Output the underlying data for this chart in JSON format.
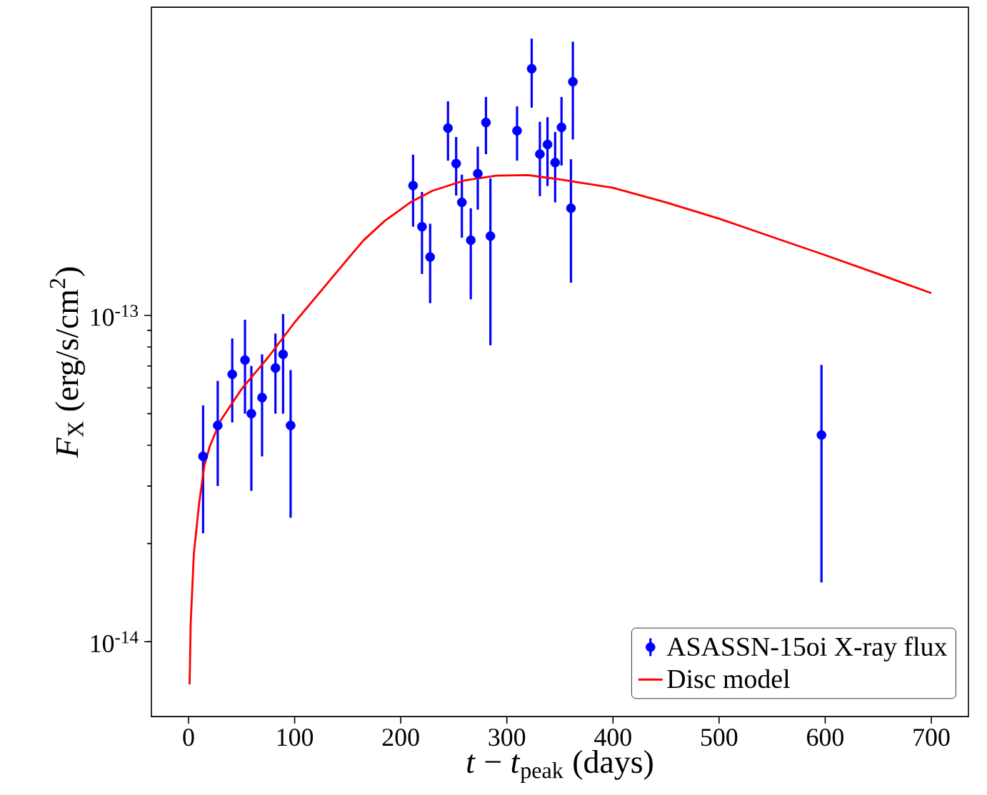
{
  "chart_data": {
    "type": "scatter",
    "xlabel": "*t* − *t*$_{peak}$ (days)",
    "ylabel": "*F*$_{X}$ (erg/s/cm$^{2}$)",
    "xlim": [
      -35,
      735
    ],
    "ylim": [
      5.9e-15,
      8.8e-13
    ],
    "xticks": [
      0,
      100,
      200,
      300,
      400,
      500,
      600,
      700
    ],
    "yticks": [
      {
        "value": 1e-14,
        "label": "10$^{-14}$"
      },
      {
        "value": 1e-13,
        "label": "10$^{-13}$"
      }
    ],
    "log": "y",
    "legend": "bottom right",
    "series": [
      {
        "name": "ASASSN-15oi X-ray flux",
        "type": "scatter",
        "marker": "circle",
        "color": "#0000ff",
        "x": [
          13.7,
          27.5,
          41.2,
          53.2,
          59.2,
          69.3,
          81.9,
          89.1,
          96.2,
          211.6,
          220,
          227.7,
          244.5,
          252.2,
          257.6,
          266,
          272.6,
          280.3,
          284.5,
          309.6,
          323.4,
          331.1,
          338.3,
          345.5,
          351.5,
          360.4,
          362.2,
          596.5
        ],
        "values": [
          3.7e-14,
          4.6e-14,
          6.6e-14,
          7.3e-14,
          5e-14,
          5.6e-14,
          6.9e-14,
          7.6e-14,
          4.6e-14,
          2.5e-13,
          1.87e-13,
          1.51e-13,
          3.75e-13,
          2.92e-13,
          2.22e-13,
          1.7e-13,
          2.72e-13,
          3.9e-13,
          1.75e-13,
          3.68e-13,
          5.7e-13,
          3.12e-13,
          3.34e-13,
          2.94e-13,
          3.77e-13,
          2.13e-13,
          5.2e-13,
          4.3e-14
        ],
        "errors": [
          [
            2.15e-14,
            5.3e-14
          ],
          [
            3e-14,
            6.3e-14
          ],
          [
            4.7e-14,
            8.5e-14
          ],
          [
            5e-14,
            9.7e-14
          ],
          [
            2.9e-14,
            7e-14
          ],
          [
            3.7e-14,
            7.6e-14
          ],
          [
            5e-14,
            8.8e-14
          ],
          [
            5e-14,
            1.01e-13
          ],
          [
            2.4e-14,
            6.8e-14
          ],
          [
            1.87e-13,
            3.11e-13
          ],
          [
            1.34e-13,
            2.39e-13
          ],
          [
            1.09e-13,
            1.91e-13
          ],
          [
            2.98e-13,
            4.53e-13
          ],
          [
            2.33e-13,
            3.52e-13
          ],
          [
            1.73e-13,
            2.7e-13
          ],
          [
            1.12e-13,
            2.13e-13
          ],
          [
            2.11e-13,
            3.29e-13
          ],
          [
            3.12e-13,
            4.67e-13
          ],
          [
            8.1e-14,
            2.63e-13
          ],
          [
            2.98e-13,
            4.37e-13
          ],
          [
            4.33e-13,
            7.05e-13
          ],
          [
            2.32e-13,
            3.92e-13
          ],
          [
            2.49e-13,
            4.05e-13
          ],
          [
            2.22e-13,
            3.65e-13
          ],
          [
            2.88e-13,
            4.67e-13
          ],
          [
            1.26e-13,
            3.01e-13
          ],
          [
            3.46e-13,
            6.9e-13
          ],
          [
            1.52e-14,
            7.05e-14
          ]
        ]
      },
      {
        "name": "Disc model",
        "type": "line",
        "color": "#ff0000",
        "x": [
          1,
          2,
          5,
          10,
          15,
          20,
          30,
          50,
          75,
          100,
          125,
          150,
          165,
          185,
          210,
          230,
          260,
          290,
          320,
          350,
          400,
          450,
          500,
          550,
          600,
          650,
          700
        ],
        "values": [
          7.4e-15,
          1.13e-14,
          1.86e-14,
          2.66e-14,
          3.48e-14,
          3.97e-14,
          4.75e-14,
          5.95e-14,
          7.44e-14,
          9.52e-14,
          1.19e-13,
          1.49e-13,
          1.7e-13,
          1.95e-13,
          2.23e-13,
          2.41e-13,
          2.59e-13,
          2.68e-13,
          2.69e-13,
          2.61e-13,
          2.46e-13,
          2.22e-13,
          1.98e-13,
          1.74e-13,
          1.53e-13,
          1.34e-13,
          1.17e-13
        ]
      }
    ]
  }
}
